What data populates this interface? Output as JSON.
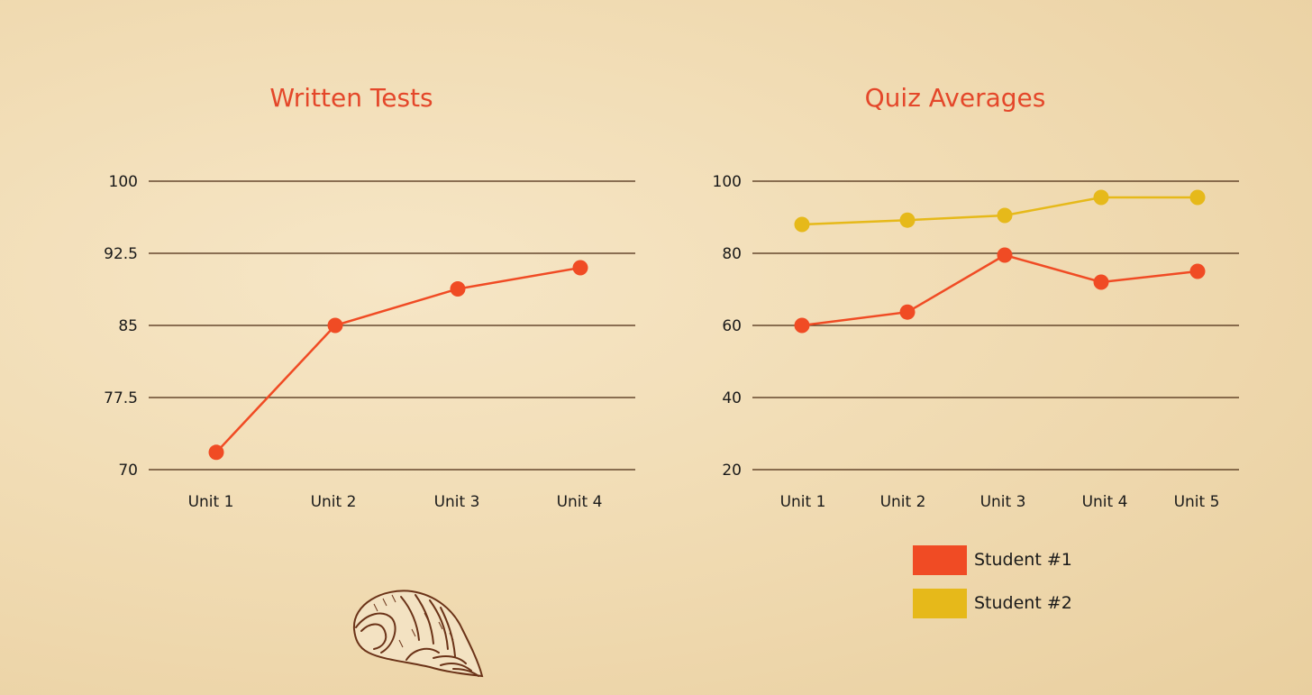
{
  "colors": {
    "accent": "#e4472a",
    "student1": "#f04b24",
    "student2": "#e6b91a",
    "grid": "#4a2a12"
  },
  "chart_data": [
    {
      "type": "line",
      "title": "Written Tests",
      "categories": [
        "Unit 1",
        "Unit 2",
        "Unit 3",
        "Unit 4"
      ],
      "series": [
        {
          "color": "#f04b24",
          "values": [
            71.8,
            85.0,
            88.8,
            91.0
          ]
        }
      ],
      "ylim": [
        70,
        100
      ],
      "yticks": [
        "100",
        "92.5",
        "85",
        "77.5",
        "70"
      ],
      "ytick_values": [
        100,
        92.5,
        85,
        77.5,
        70
      ],
      "grid": true
    },
    {
      "type": "line",
      "title": "Quiz Averages",
      "categories": [
        "Unit 1",
        "Unit 2",
        "Unit 3",
        "Unit 4",
        "Unit 5"
      ],
      "series": [
        {
          "name": "Student #1",
          "color": "#f04b24",
          "values": [
            60,
            63.7,
            79.5,
            72,
            75
          ]
        },
        {
          "name": "Student #2",
          "color": "#e6b91a",
          "values": [
            88,
            89.2,
            90.5,
            95.5,
            95.5
          ]
        }
      ],
      "ylim": [
        20,
        100
      ],
      "yticks": [
        "100",
        "80",
        "60",
        "40",
        "20"
      ],
      "ytick_values": [
        100,
        80,
        60,
        40,
        20
      ],
      "grid": true,
      "legend": "bottom-right"
    }
  ],
  "decoration": {
    "icon": "seashell-icon"
  }
}
